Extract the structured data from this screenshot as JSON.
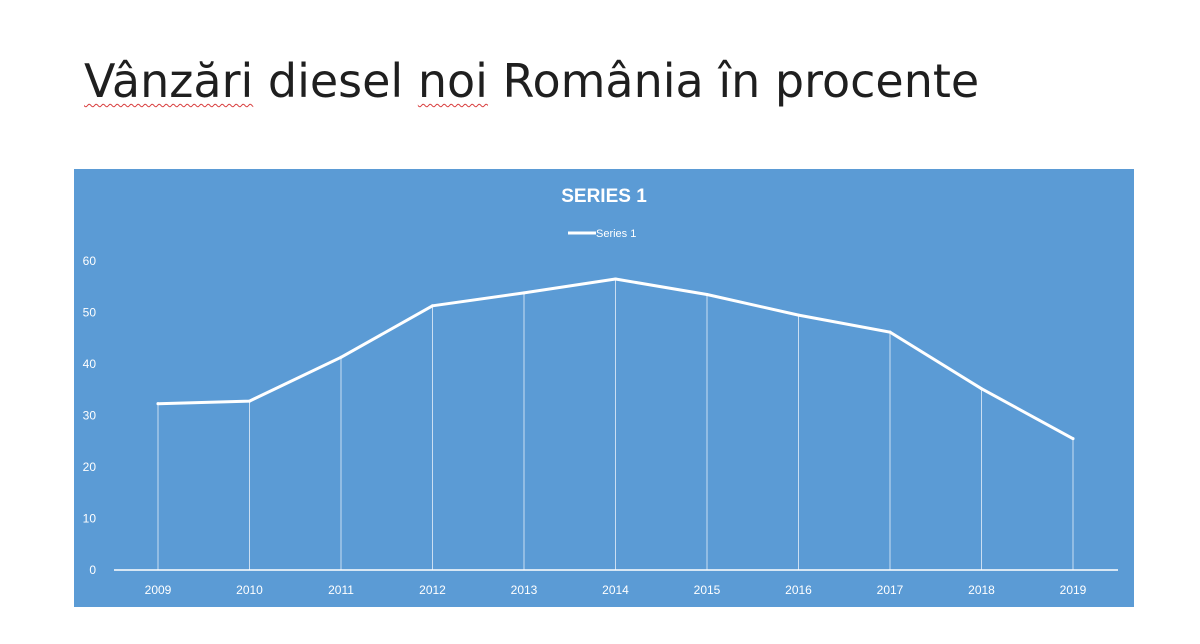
{
  "slide": {
    "title_parts": [
      "Vânzări",
      " diesel ",
      "noi",
      " România în procente"
    ]
  },
  "colors": {
    "slide_background": "#ffffff",
    "chart_background": "#5b9bd5",
    "series_line": "#ffffff",
    "spellcheck_underline": "#d83b3b"
  },
  "chart_data": {
    "type": "line",
    "title": "SERIES 1",
    "legend": {
      "position": "top",
      "entries": [
        "Series 1"
      ]
    },
    "categories": [
      "2009",
      "2010",
      "2011",
      "2012",
      "2013",
      "2014",
      "2015",
      "2016",
      "2017",
      "2018",
      "2019"
    ],
    "series": [
      {
        "name": "Series 1",
        "values": [
          32.3,
          32.8,
          41.3,
          51.3,
          53.8,
          56.5,
          53.5,
          49.5,
          46.2,
          35.2,
          25.5
        ]
      }
    ],
    "ylim": [
      0,
      60
    ],
    "yticks": [
      0,
      10,
      20,
      30,
      40,
      50,
      60
    ],
    "drop_lines": true,
    "grid": false
  }
}
